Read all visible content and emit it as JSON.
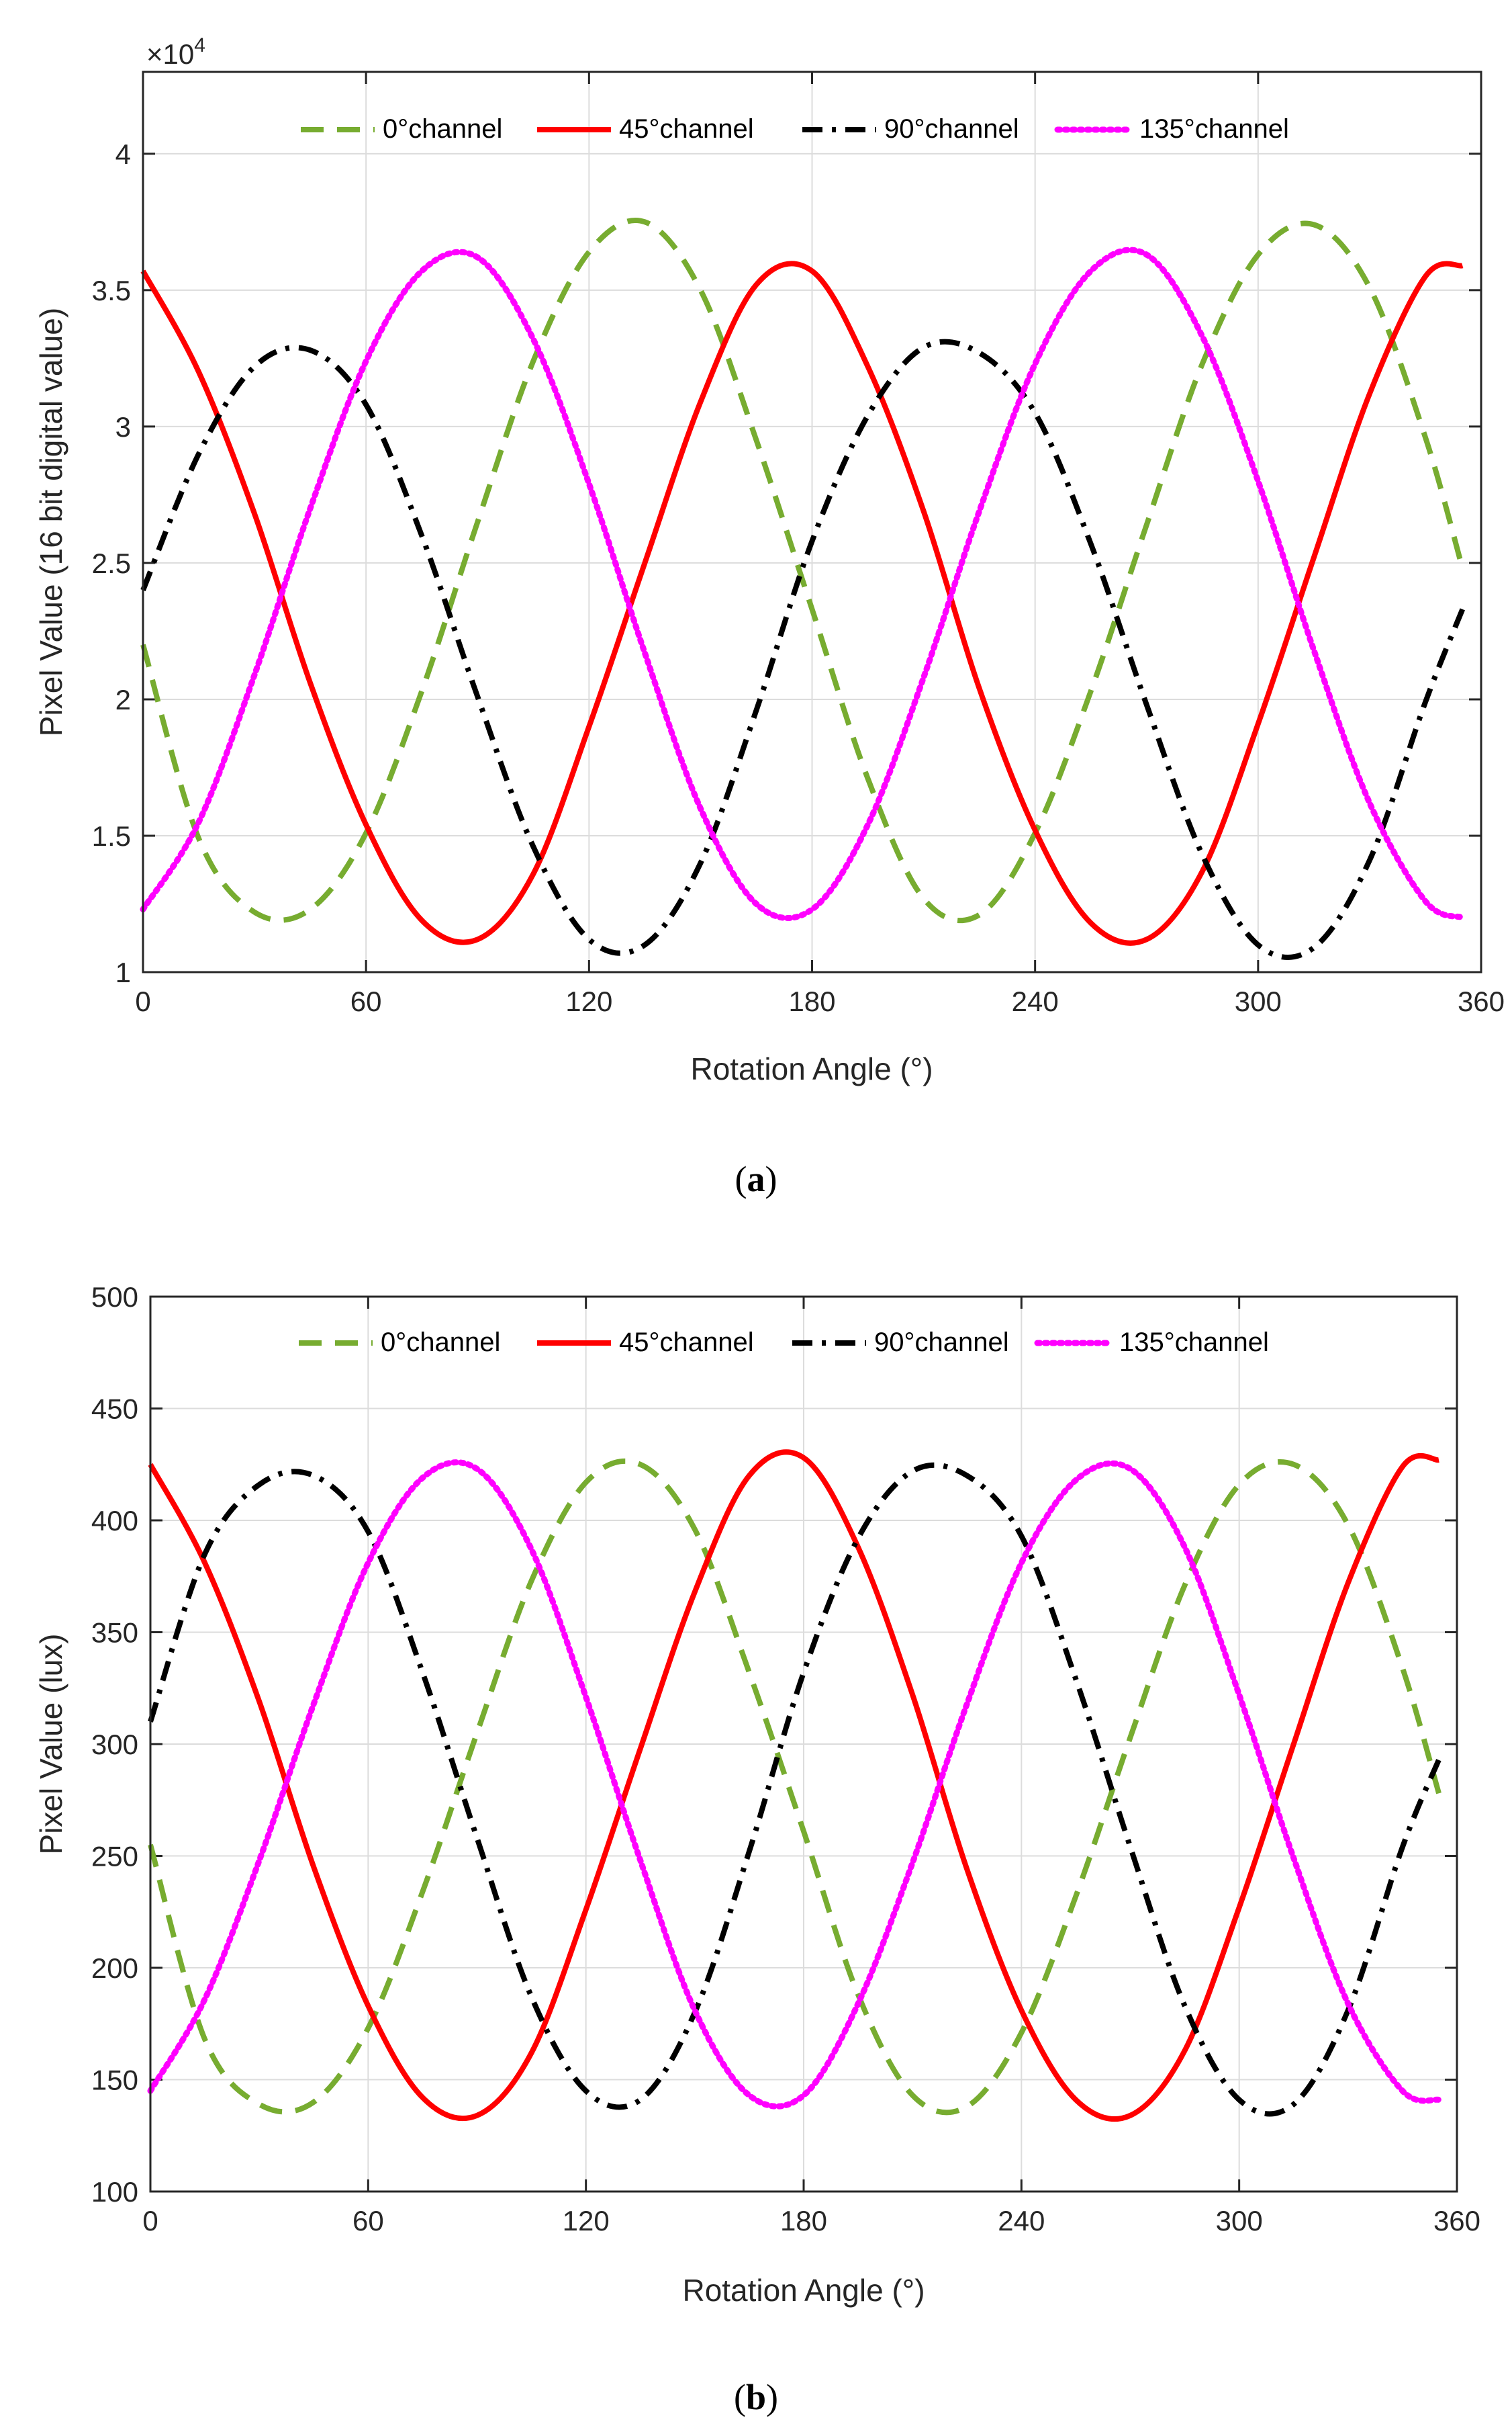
{
  "chart_data": [
    {
      "type": "line",
      "panel": "a",
      "caption_letter": "a",
      "xlabel": "Rotation Angle (°)",
      "ylabel": "Pixel Value (16 bit digital value)",
      "y_multiplier": "×10",
      "y_multiplier_exp": "4",
      "xlim": [
        0,
        360
      ],
      "ylim": [
        1,
        4.3
      ],
      "xticks": [
        0,
        60,
        120,
        180,
        240,
        300,
        360
      ],
      "yticks": [
        1,
        1.5,
        2,
        2.5,
        3,
        3.5,
        4
      ],
      "ytick_labels": [
        "1",
        "1.5",
        "2",
        "2.5",
        "3",
        "3.5",
        "4"
      ],
      "grid": true,
      "legend_position": "top",
      "x": [
        0,
        15,
        30,
        45,
        60,
        75,
        90,
        105,
        120,
        135,
        150,
        165,
        180,
        195,
        210,
        225,
        240,
        255,
        270,
        285,
        300,
        315,
        330,
        345,
        355
      ],
      "series": [
        {
          "name": "0°channel",
          "color": "#77ac30",
          "dash": "dashed",
          "values": [
            2.2,
            1.49,
            1.22,
            1.23,
            1.51,
            2.03,
            2.65,
            3.24,
            3.64,
            3.75,
            3.5,
            2.95,
            2.33,
            1.71,
            1.27,
            1.21,
            1.51,
            2.03,
            2.64,
            3.23,
            3.63,
            3.74,
            3.51,
            2.96,
            2.48
          ]
        },
        {
          "name": "45°channel",
          "color": "#ff0000",
          "dash": "solid",
          "values": [
            3.57,
            3.2,
            2.68,
            2.06,
            1.54,
            1.19,
            1.12,
            1.36,
            1.9,
            2.5,
            3.09,
            3.52,
            3.57,
            3.22,
            2.69,
            2.04,
            1.52,
            1.18,
            1.12,
            1.37,
            1.91,
            2.52,
            3.12,
            3.55,
            3.59
          ]
        },
        {
          "name": "90°channel",
          "color": "#000000",
          "dash": "dashdot",
          "values": [
            2.4,
            2.9,
            3.22,
            3.28,
            3.08,
            2.6,
            2.01,
            1.46,
            1.12,
            1.1,
            1.4,
            1.96,
            2.58,
            3.04,
            3.29,
            3.27,
            3.05,
            2.57,
            1.98,
            1.43,
            1.1,
            1.09,
            1.41,
            1.99,
            2.33
          ]
        },
        {
          "name": "135°channel",
          "color": "#ff00ff",
          "dash": "dotted",
          "values": [
            1.23,
            1.55,
            2.09,
            2.7,
            3.24,
            3.57,
            3.62,
            3.32,
            2.79,
            2.17,
            1.6,
            1.25,
            1.23,
            1.54,
            2.08,
            2.69,
            3.23,
            3.57,
            3.63,
            3.33,
            2.8,
            2.18,
            1.62,
            1.26,
            1.2
          ]
        }
      ]
    },
    {
      "type": "line",
      "panel": "b",
      "caption_letter": "b",
      "xlabel": "Rotation Angle (°)",
      "ylabel": "Pixel Value (lux)",
      "xlim": [
        0,
        360
      ],
      "ylim": [
        100,
        500
      ],
      "xticks": [
        0,
        60,
        120,
        180,
        240,
        300,
        360
      ],
      "yticks": [
        100,
        150,
        200,
        250,
        300,
        350,
        400,
        450,
        500
      ],
      "ytick_labels": [
        "100",
        "150",
        "200",
        "250",
        "300",
        "350",
        "400",
        "450",
        "500"
      ],
      "grid": true,
      "legend_position": "top",
      "x": [
        0,
        15,
        30,
        45,
        60,
        75,
        90,
        105,
        120,
        135,
        150,
        165,
        180,
        195,
        210,
        225,
        240,
        255,
        270,
        285,
        300,
        315,
        330,
        345,
        355
      ],
      "series": [
        {
          "name": "0°channel",
          "color": "#77ac30",
          "dash": "dashed",
          "values": [
            255,
            168,
            139,
            140,
            173,
            234,
            305,
            373,
            417,
            425,
            396,
            332,
            261,
            188,
            143,
            138,
            171,
            232,
            303,
            371,
            416,
            425,
            398,
            334,
            278
          ]
        },
        {
          "name": "45°channel",
          "color": "#ff0000",
          "dash": "solid",
          "values": [
            425,
            381,
            319,
            245,
            183,
            142,
            134,
            162,
            226,
            298,
            368,
            420,
            428,
            388,
            322,
            244,
            181,
            141,
            134,
            163,
            227,
            300,
            372,
            424,
            427
          ]
        },
        {
          "name": "90°channel",
          "color": "#000000",
          "dash": "dashdot",
          "values": [
            310,
            385,
            416,
            420,
            395,
            332,
            258,
            187,
            145,
            141,
            180,
            252,
            332,
            392,
            422,
            420,
            393,
            329,
            254,
            183,
            141,
            139,
            181,
            254,
            293
          ]
        },
        {
          "name": "135°channel",
          "color": "#ff00ff",
          "dash": "dotted",
          "values": [
            145,
            186,
            248,
            318,
            381,
            419,
            423,
            387,
            321,
            248,
            181,
            143,
            143,
            184,
            247,
            318,
            381,
            418,
            423,
            388,
            322,
            249,
            184,
            145,
            141
          ]
        }
      ]
    }
  ]
}
